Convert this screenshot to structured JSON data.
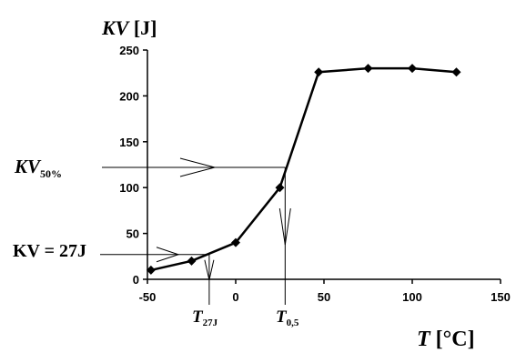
{
  "chart_data": {
    "type": "line",
    "title": "",
    "ylabel": {
      "italic": "KV",
      "unit": " [J]"
    },
    "xlabel": {
      "italic": "T",
      "unit": " [°C]"
    },
    "xlim": [
      -50,
      150
    ],
    "ylim": [
      0,
      250
    ],
    "x_ticks": [
      -50,
      0,
      50,
      100,
      150
    ],
    "x_tick_labels": [
      "-50",
      "0",
      "50",
      "100",
      "150"
    ],
    "y_ticks": [
      0,
      50,
      100,
      150,
      200,
      250
    ],
    "y_tick_labels": [
      "0",
      "50",
      "100",
      "150",
      "200",
      "250"
    ],
    "grid": false,
    "series": [
      {
        "marker": "diamond",
        "x": [
          -48,
          -25,
          0,
          25,
          47,
          75,
          100,
          125
        ],
        "y": [
          10,
          20,
          40,
          100,
          226,
          230,
          230,
          226
        ]
      }
    ],
    "annotations": {
      "kv50": {
        "label": "KV",
        "subscript": "50%",
        "y": 122,
        "x_intersect": 28
      },
      "kv27": {
        "label": "KV = 27J",
        "y": 27,
        "x_intersect": -15
      },
      "t27": {
        "label": "T",
        "subscript": "27J",
        "x": -15
      },
      "t05": {
        "label": "T",
        "subscript": "0,5",
        "x": 28
      }
    }
  }
}
